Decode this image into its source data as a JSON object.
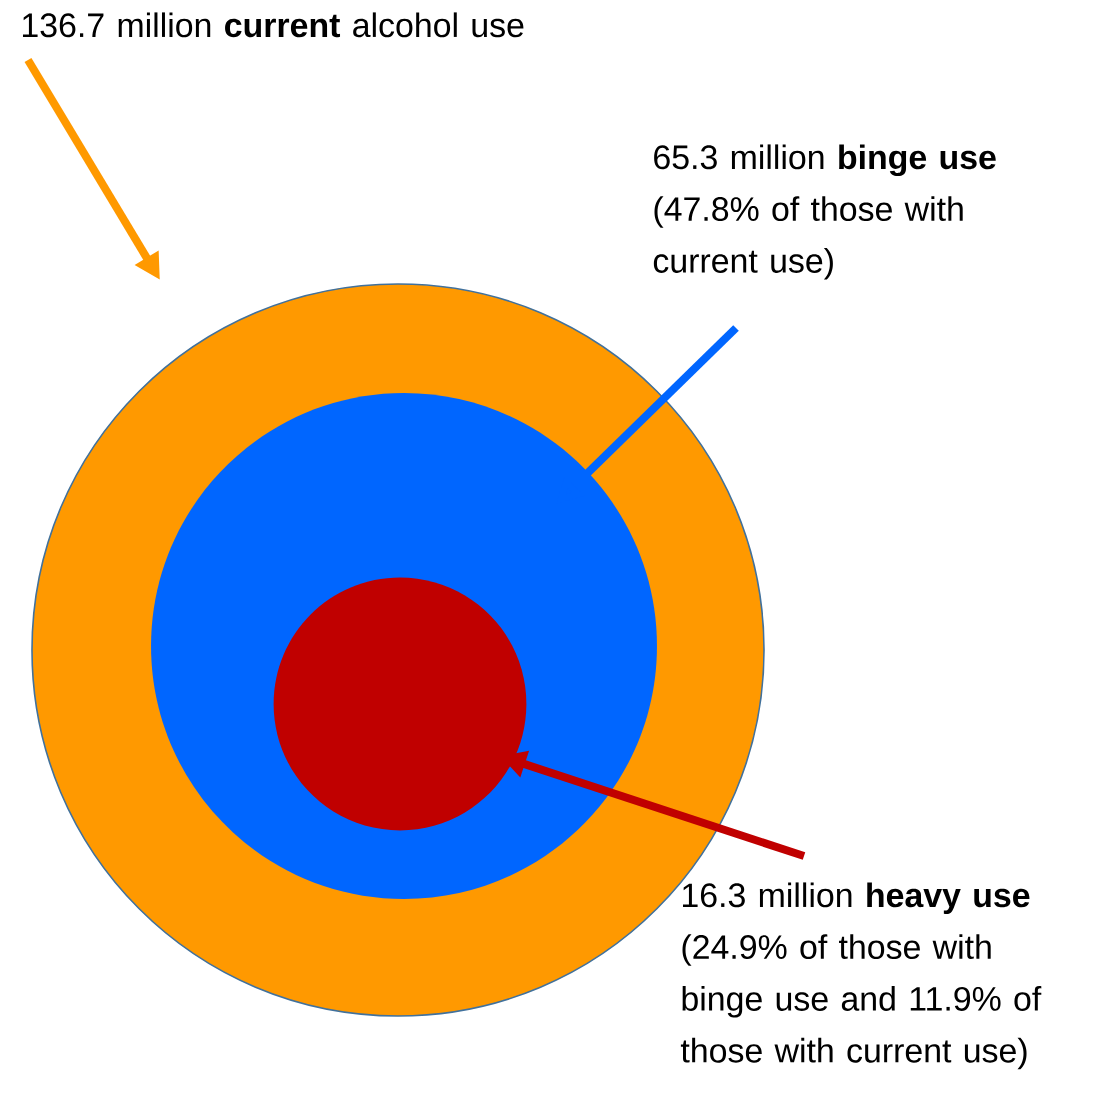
{
  "chart_data": {
    "type": "other",
    "categories": [
      "million **current** alcohol use",
      "million **binge use** (47.8% of those with current use)",
      "million **heavy use** (24.9% of those with binge use and 11.9% of those with current use)"
    ],
    "values": [
      136.7,
      65.3,
      16.3
    ],
    "value_labels": [
      "136.7",
      "65.3",
      "16.3"
    ],
    "colors": [
      "#ff9900",
      "#0066ff",
      "#c00000"
    ]
  }
}
